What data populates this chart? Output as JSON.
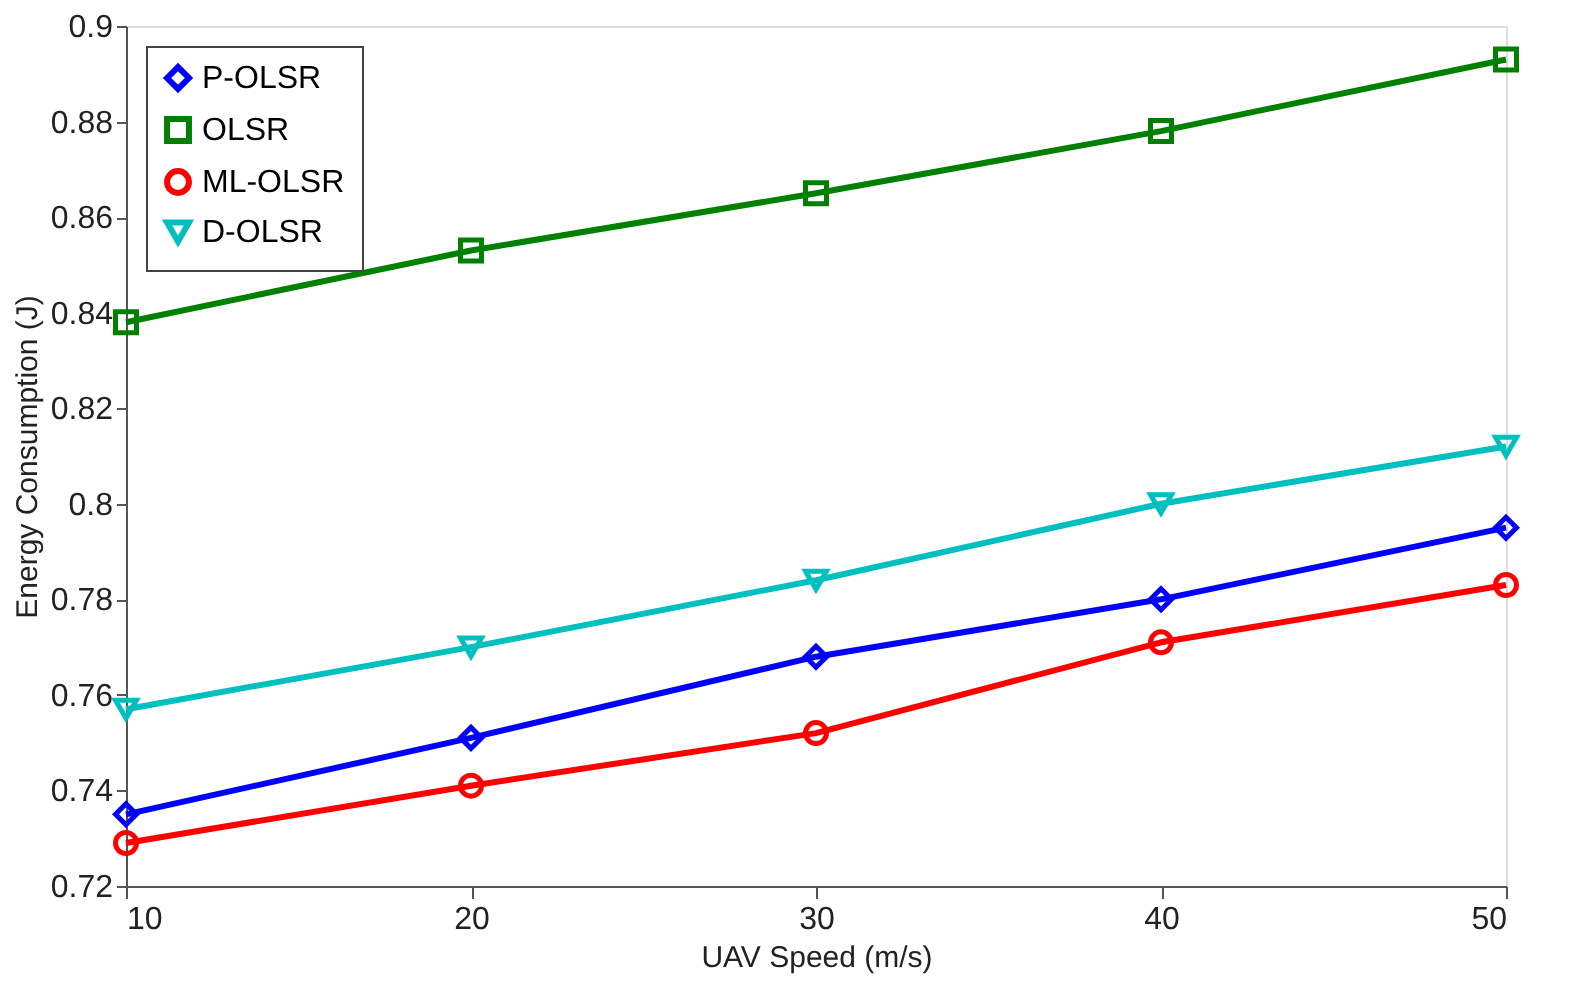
{
  "chart_data": {
    "type": "line",
    "xlabel": "UAV Speed (m/s)",
    "ylabel": "Energy Consumption (J)",
    "x": [
      10,
      20,
      30,
      40,
      50
    ],
    "series": [
      {
        "name": "P-OLSR",
        "color": "#0000ff",
        "marker": "diamond",
        "values": [
          0.735,
          0.751,
          0.768,
          0.78,
          0.795
        ]
      },
      {
        "name": "OLSR",
        "color": "#008000",
        "marker": "square",
        "values": [
          0.838,
          0.853,
          0.865,
          0.878,
          0.893
        ]
      },
      {
        "name": "ML-OLSR",
        "color": "#ff0000",
        "marker": "circle",
        "values": [
          0.729,
          0.741,
          0.752,
          0.771,
          0.783
        ]
      },
      {
        "name": "D-OLSR",
        "color": "#00bfbf",
        "marker": "triangle",
        "values": [
          0.757,
          0.77,
          0.784,
          0.8,
          0.812
        ]
      }
    ],
    "xlim": [
      10,
      50
    ],
    "xticks": [
      10,
      20,
      30,
      40,
      50
    ],
    "ylim": [
      0.72,
      0.9
    ],
    "yticks": [
      0.72,
      0.74,
      0.76,
      0.78,
      0.8,
      0.82,
      0.84,
      0.86,
      0.88,
      0.9
    ],
    "grid": false,
    "legend": "top left",
    "line_style": "solid"
  }
}
